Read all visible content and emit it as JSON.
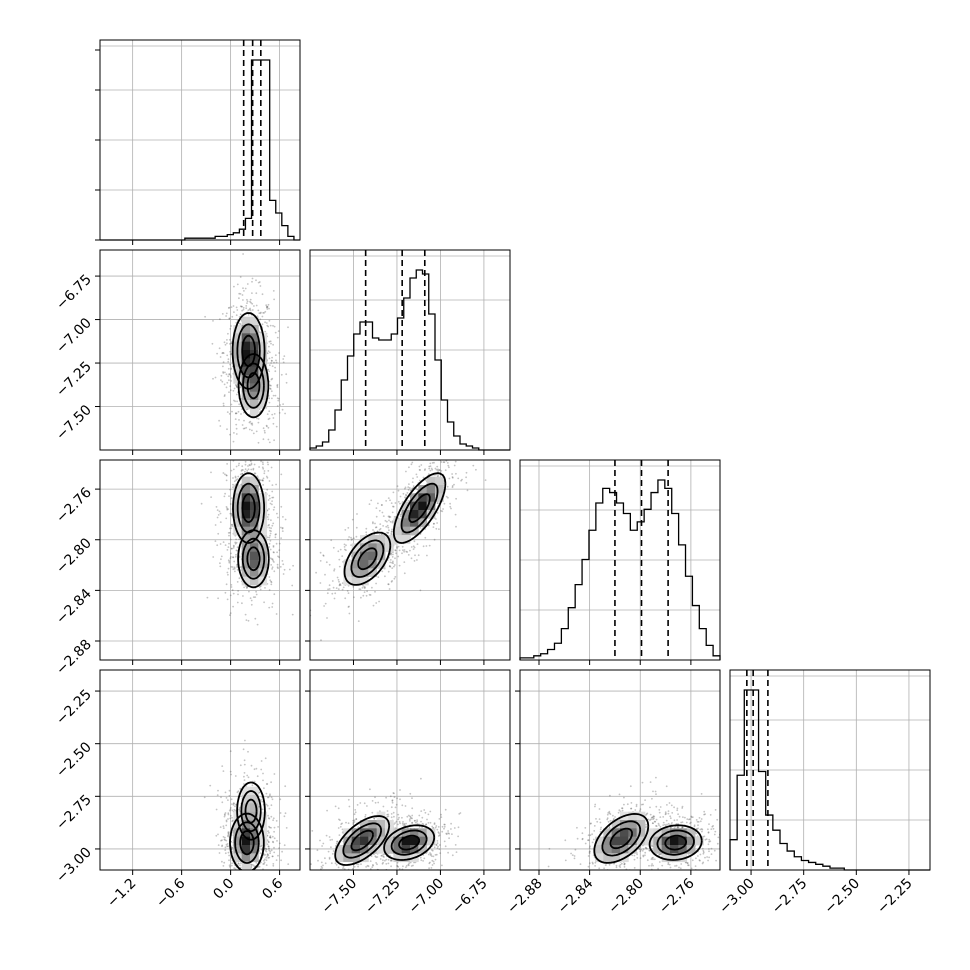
{
  "chart_data": {
    "type": "corner",
    "grid": true,
    "variables": [
      {
        "range": [
          -1.6,
          0.85
        ],
        "ticks": [
          -1.2,
          -0.6,
          0.0,
          0.6
        ],
        "tick_labels": [
          "−1.2",
          "−0.6",
          "0.0",
          "0.6"
        ],
        "quantiles": [
          0.16,
          0.27,
          0.37
        ]
      },
      {
        "range": [
          -7.75,
          -6.6
        ],
        "ticks": [
          -7.5,
          -7.25,
          -7.0,
          -6.75
        ],
        "tick_labels": [
          "−7.50",
          "−7.25",
          "−7.00",
          "−6.75"
        ],
        "quantiles": [
          -7.43,
          -7.22,
          -7.09
        ]
      },
      {
        "range": [
          -2.895,
          -2.737
        ],
        "ticks": [
          -2.88,
          -2.84,
          -2.8,
          -2.76
        ],
        "tick_labels": [
          "−2.88",
          "−2.84",
          "−2.80",
          "−2.76"
        ],
        "quantiles": [
          -2.82,
          -2.799,
          -2.778
        ]
      },
      {
        "range": [
          -3.1,
          -2.15
        ],
        "ticks": [
          -3.0,
          -2.75,
          -2.5,
          -2.25
        ],
        "tick_labels": [
          "−3.00",
          "−2.75",
          "−2.50",
          "−2.25"
        ],
        "quantiles": [
          -3.02,
          -2.99,
          -2.92
        ]
      }
    ],
    "histograms": [
      {
        "variable": 0,
        "edges": [
          -1.6,
          0.85
        ],
        "counts": [
          0,
          0,
          0,
          0,
          0,
          0,
          0,
          0,
          0,
          0,
          0,
          0,
          0,
          0,
          1,
          1,
          1,
          1,
          1,
          2,
          2,
          3,
          4,
          6,
          12,
          100,
          100,
          100,
          22,
          15,
          8,
          2,
          0
        ]
      },
      {
        "variable": 1,
        "edges": [
          -7.75,
          -6.6
        ],
        "counts": [
          1,
          2,
          4,
          10,
          20,
          35,
          47,
          58,
          64,
          64,
          56,
          55,
          55,
          58,
          66,
          76,
          86,
          90,
          88,
          68,
          45,
          25,
          14,
          7,
          3,
          2,
          1,
          0,
          0,
          0,
          0,
          0
        ]
      },
      {
        "variable": 2,
        "edges": [
          -2.895,
          -2.737
        ],
        "counts": [
          1,
          1,
          2,
          3,
          5,
          8,
          15,
          25,
          36,
          48,
          62,
          75,
          82,
          80,
          75,
          70,
          62,
          66,
          72,
          80,
          86,
          82,
          70,
          55,
          40,
          26,
          15,
          7,
          2
        ]
      },
      {
        "variable": 3,
        "edges": [
          -3.1,
          -2.15
        ],
        "counts": [
          16,
          50,
          95,
          95,
          52,
          29,
          21,
          14,
          10,
          7,
          5,
          4,
          3,
          2,
          1,
          1,
          0,
          0,
          0,
          0,
          0,
          0,
          0,
          0,
          0,
          0,
          0,
          0
        ]
      }
    ],
    "joint_density": [
      {
        "x": 0,
        "y": 1,
        "peaks": [
          {
            "x": 0.22,
            "y": -7.18,
            "sx": 0.09,
            "sy": 0.1,
            "rho": 0.0,
            "w": 0.65
          },
          {
            "x": 0.28,
            "y": -7.38,
            "sx": 0.1,
            "sy": 0.1,
            "rho": 0.0,
            "w": 0.35
          }
        ]
      },
      {
        "x": 0,
        "y": 2,
        "peaks": [
          {
            "x": 0.22,
            "y": -2.775,
            "sx": 0.09,
            "sy": 0.013,
            "rho": 0.0,
            "w": 0.6
          },
          {
            "x": 0.28,
            "y": -2.815,
            "sx": 0.1,
            "sy": 0.012,
            "rho": 0.0,
            "w": 0.4
          }
        ]
      },
      {
        "x": 0,
        "y": 3,
        "peaks": [
          {
            "x": 0.2,
            "y": -2.97,
            "sx": 0.09,
            "sy": 0.06,
            "rho": 0.0,
            "w": 0.75
          },
          {
            "x": 0.25,
            "y": -2.82,
            "sx": 0.1,
            "sy": 0.08,
            "rho": 0.0,
            "w": 0.25
          }
        ]
      },
      {
        "x": 1,
        "y": 2,
        "peaks": [
          {
            "x": -7.12,
            "y": -2.775,
            "sx": 0.07,
            "sy": 0.013,
            "rho": 0.7,
            "w": 0.6
          },
          {
            "x": -7.42,
            "y": -2.815,
            "sx": 0.07,
            "sy": 0.011,
            "rho": 0.5,
            "w": 0.4
          }
        ]
      },
      {
        "x": 1,
        "y": 3,
        "peaks": [
          {
            "x": -7.18,
            "y": -2.97,
            "sx": 0.07,
            "sy": 0.04,
            "rho": 0.3,
            "w": 0.55
          },
          {
            "x": -7.45,
            "y": -2.96,
            "sx": 0.08,
            "sy": 0.06,
            "rho": 0.6,
            "w": 0.45
          }
        ]
      },
      {
        "x": 2,
        "y": 3,
        "peaks": [
          {
            "x": -2.772,
            "y": -2.97,
            "sx": 0.01,
            "sy": 0.04,
            "rho": 0.1,
            "w": 0.55
          },
          {
            "x": -2.815,
            "y": -2.95,
            "sx": 0.011,
            "sy": 0.06,
            "rho": 0.5,
            "w": 0.45
          }
        ]
      }
    ]
  }
}
